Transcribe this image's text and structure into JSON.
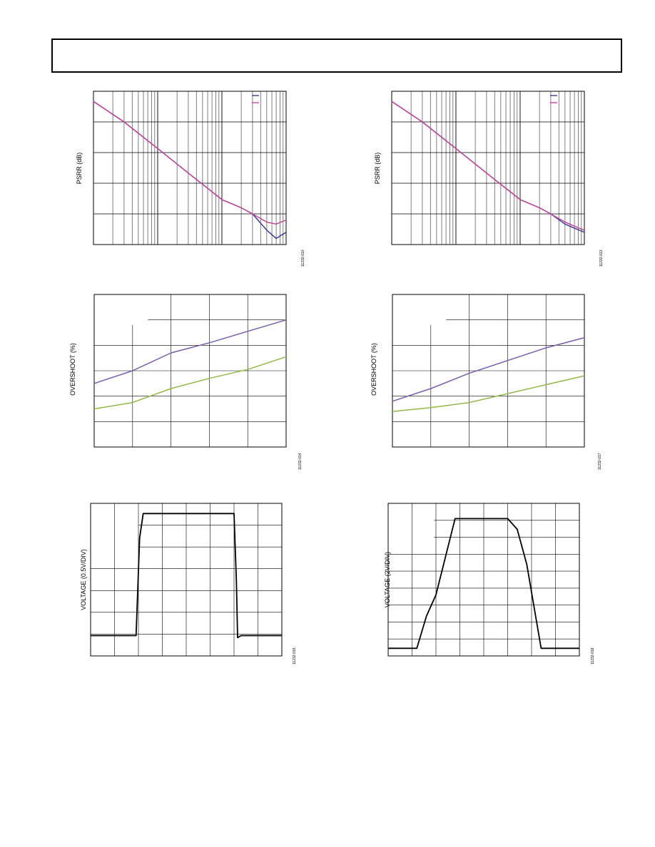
{
  "colors": {
    "series_blue": "#3b3f8c",
    "series_magenta": "#c2489c",
    "series_purple": "#7a5ca8",
    "series_green": "#93b84a",
    "trace_black": "#000000",
    "grid": "#000000"
  },
  "charts": [
    {
      "id": "psrr-left",
      "ylabel": "PSRR (dB)",
      "fig_id": "11232-010"
    },
    {
      "id": "psrr-right",
      "ylabel": "PSRR (dB)",
      "fig_id": "11232-013"
    },
    {
      "id": "overshoot-left",
      "ylabel": "OVERSHOOT (%)",
      "fig_id": "11232-014"
    },
    {
      "id": "overshoot-right",
      "ylabel": "OVERSHOOT (%)",
      "fig_id": "11232-017"
    },
    {
      "id": "pulse-left",
      "ylabel": "VOLTAGE (0.5V/DIV)",
      "fig_id": "11232-015"
    },
    {
      "id": "pulse-right",
      "ylabel": "VOLTAGE (2V/DIV)",
      "fig_id": "11232-018"
    }
  ],
  "chart_data": [
    {
      "type": "line",
      "xscale": "log",
      "x": [
        1,
        3,
        10,
        30,
        100,
        200,
        300,
        500,
        700,
        1000
      ],
      "series": [
        {
          "values": [
            40,
            30,
            17,
            5,
            -8,
            -12,
            -15,
            -23,
            -27,
            -24
          ]
        },
        {
          "values": [
            40,
            30,
            17,
            5,
            -8,
            -12,
            -15,
            -19,
            -20,
            -18
          ]
        }
      ],
      "xlim": [
        1,
        1000
      ],
      "ylim": [
        -30,
        45
      ],
      "grid": true,
      "legend": "top-right"
    },
    {
      "type": "line",
      "xscale": "log",
      "x": [
        1,
        3,
        10,
        30,
        100,
        200,
        300,
        500,
        700,
        1000
      ],
      "series": [
        {
          "values": [
            40,
            30,
            17,
            5,
            -8,
            -12,
            -15,
            -20,
            -22,
            -24
          ]
        },
        {
          "values": [
            40,
            30,
            17,
            5,
            -8,
            -12,
            -15,
            -19,
            -21,
            -23
          ]
        }
      ],
      "xlim": [
        1,
        1000
      ],
      "ylim": [
        -30,
        45
      ],
      "grid": true,
      "legend": "top-right"
    },
    {
      "type": "line",
      "x": [
        0,
        10,
        20,
        30,
        40,
        50
      ],
      "series": [
        {
          "values": [
            25,
            30,
            37,
            41,
            45.5,
            50
          ]
        },
        {
          "values": [
            15,
            17.5,
            23,
            27,
            30.5,
            35.5
          ]
        }
      ],
      "xlim": [
        0,
        50
      ],
      "ylim": [
        0,
        60
      ],
      "grid": true
    },
    {
      "type": "line",
      "x": [
        0,
        10,
        20,
        30,
        40,
        50
      ],
      "series": [
        {
          "values": [
            18,
            23,
            29,
            34,
            39,
            43
          ]
        },
        {
          "values": [
            14,
            15.5,
            17.5,
            21,
            24.5,
            28
          ]
        }
      ],
      "xlim": [
        0,
        50
      ],
      "ylim": [
        0,
        60
      ],
      "grid": true
    },
    {
      "type": "line",
      "x": [
        0,
        1.9,
        2.05,
        2.2,
        6.0,
        6.1,
        6.15,
        6.3,
        8.0
      ],
      "series": [
        {
          "values": [
            -1.5,
            -1.5,
            3.3,
            4.5,
            4.5,
            1.2,
            -1.6,
            -1.5,
            -1.5
          ]
        }
      ],
      "xlim": [
        0,
        8
      ],
      "ylim": [
        -2.5,
        5
      ],
      "grid": true
    },
    {
      "type": "line",
      "x": [
        0,
        1.2,
        1.6,
        2.0,
        2.8,
        5.0,
        5.4,
        5.8,
        6.4,
        8.0
      ],
      "series": [
        {
          "values": [
            0,
            0,
            2.1,
            3.5,
            8.5,
            8.5,
            7.8,
            5.5,
            0,
            0
          ]
        }
      ],
      "xlim": [
        0,
        8
      ],
      "ylim": [
        -0.5,
        9.5
      ],
      "grid": true
    }
  ]
}
